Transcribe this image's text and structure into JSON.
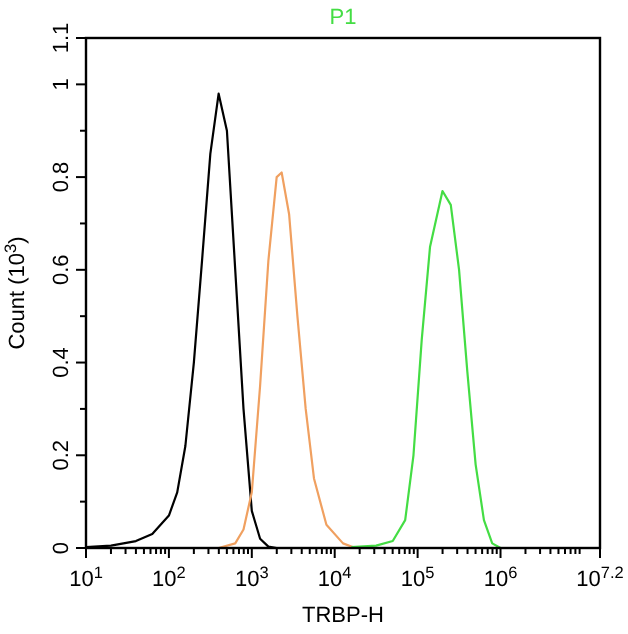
{
  "chart_data": {
    "type": "line",
    "title": "P1",
    "xlabel": "TRBP-H",
    "ylabel": "Count (10$^{3}$)",
    "log": "x",
    "xlim": [
      10,
      15848932
    ],
    "ylim": [
      0,
      1.1
    ],
    "xticks": [
      {
        "value": 10,
        "label": "10$^{1}$"
      },
      {
        "value": 20,
        "label": null
      },
      {
        "value": 30,
        "label": null
      },
      {
        "value": 40,
        "label": null
      },
      {
        "value": 50,
        "label": null
      },
      {
        "value": 60,
        "label": null
      },
      {
        "value": 70,
        "label": null
      },
      {
        "value": 80,
        "label": null
      },
      {
        "value": 90,
        "label": null
      },
      {
        "value": 100,
        "label": "10$^{2}$"
      },
      {
        "value": 200,
        "label": null
      },
      {
        "value": 300,
        "label": null
      },
      {
        "value": 400,
        "label": null
      },
      {
        "value": 500,
        "label": null
      },
      {
        "value": 600,
        "label": null
      },
      {
        "value": 700,
        "label": null
      },
      {
        "value": 800,
        "label": null
      },
      {
        "value": 900,
        "label": null
      },
      {
        "value": 1000,
        "label": "10$^{3}$"
      },
      {
        "value": 2000,
        "label": null
      },
      {
        "value": 3000,
        "label": null
      },
      {
        "value": 4000,
        "label": null
      },
      {
        "value": 5000,
        "label": null
      },
      {
        "value": 6000,
        "label": null
      },
      {
        "value": 7000,
        "label": null
      },
      {
        "value": 8000,
        "label": null
      },
      {
        "value": 9000,
        "label": null
      },
      {
        "value": 10000,
        "label": "10$^{4}$"
      },
      {
        "value": 20000,
        "label": null
      },
      {
        "value": 30000,
        "label": null
      },
      {
        "value": 40000,
        "label": null
      },
      {
        "value": 50000,
        "label": null
      },
      {
        "value": 60000,
        "label": null
      },
      {
        "value": 70000,
        "label": null
      },
      {
        "value": 80000,
        "label": null
      },
      {
        "value": 90000,
        "label": null
      },
      {
        "value": 100000,
        "label": "10$^{5}$"
      },
      {
        "value": 200000,
        "label": null
      },
      {
        "value": 300000,
        "label": null
      },
      {
        "value": 400000,
        "label": null
      },
      {
        "value": 500000,
        "label": null
      },
      {
        "value": 600000,
        "label": null
      },
      {
        "value": 700000,
        "label": null
      },
      {
        "value": 800000,
        "label": null
      },
      {
        "value": 900000,
        "label": null
      },
      {
        "value": 1000000,
        "label": "10$^{6}$"
      },
      {
        "value": 2000000,
        "label": null
      },
      {
        "value": 3000000,
        "label": null
      },
      {
        "value": 4000000,
        "label": null
      },
      {
        "value": 5000000,
        "label": null
      },
      {
        "value": 6000000,
        "label": null
      },
      {
        "value": 7000000,
        "label": null
      },
      {
        "value": 8000000,
        "label": null
      },
      {
        "value": 9000000,
        "label": null
      },
      {
        "value": 15848932,
        "label": "10$^{7.2}$"
      }
    ],
    "yticks": [
      0,
      {
        "value": 0.1,
        "label": null
      },
      0.2,
      {
        "value": 0.3,
        "label": null
      },
      0.4,
      {
        "value": 0.5,
        "label": null
      },
      0.6,
      {
        "value": 0.7,
        "label": null
      },
      0.8,
      {
        "value": 0.9,
        "label": null
      },
      1,
      1.1
    ],
    "grid": false,
    "marker": "none",
    "line_style": "solid",
    "series": [
      {
        "color": "#000000",
        "x": [
          10,
          20,
          40,
          63,
          100,
          126,
          158,
          200,
          251,
          316,
          398,
          501,
          631,
          794,
          1000,
          1259,
          1585,
          1995
        ],
        "values": [
          0.002,
          0.005,
          0.015,
          0.03,
          0.07,
          0.12,
          0.22,
          0.4,
          0.62,
          0.85,
          0.98,
          0.9,
          0.6,
          0.3,
          0.08,
          0.02,
          0.003,
          0
        ]
      },
      {
        "color": "#f0a060",
        "x": [
          398,
          631,
          794,
          1000,
          1259,
          1585,
          1995,
          2291,
          2818,
          3548,
          4467,
          5623,
          7943,
          12589,
          17783
        ],
        "values": [
          0,
          0.01,
          0.04,
          0.12,
          0.35,
          0.62,
          0.8,
          0.81,
          0.72,
          0.5,
          0.3,
          0.15,
          0.05,
          0.01,
          0
        ]
      },
      {
        "color": "#44dd44",
        "x": [
          15849,
          31623,
          50119,
          70795,
          89125,
          112202,
          141254,
          199526,
          251189,
          316228,
          398107,
          501187,
          630957,
          794328,
          1000000
        ],
        "values": [
          0.002,
          0.005,
          0.015,
          0.06,
          0.2,
          0.45,
          0.65,
          0.77,
          0.74,
          0.6,
          0.38,
          0.18,
          0.06,
          0.01,
          0
        ]
      }
    ]
  }
}
